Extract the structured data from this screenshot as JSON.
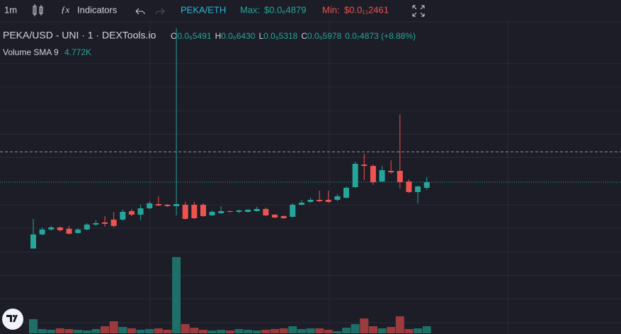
{
  "toolbar": {
    "interval": "1m",
    "indicators": "Indicators",
    "pair": "PEKA/ETH",
    "max_label": "Max:",
    "max_value": "$0.0₆4879",
    "min_label": "Min:",
    "min_value": "$0.0₁₁2461"
  },
  "legend": {
    "symbol": "PEKA/USD - UNI · 1 · DEXTools.io",
    "ohlc": [
      {
        "label": "O",
        "value": "0.0₆5491"
      },
      {
        "label": "H",
        "value": "0.0₆6430"
      },
      {
        "label": "L",
        "value": "0.0₆5318"
      },
      {
        "label": "C",
        "value": "0.0₆5978"
      }
    ],
    "change": "0.0₇4873 (+8.88%)",
    "volume_label": "Volume SMA 9",
    "volume_value": "4.772K"
  },
  "chart_data": {
    "type": "candlestick",
    "up_color": "#26a69a",
    "down_color": "#ef5350",
    "volume_up_color": "#1d6f68",
    "volume_down_color": "#9c3b3d",
    "ylim": [
      6.1e-09,
      1.9886e-06
    ],
    "vlim": [
      0,
      44000
    ],
    "open": [
      2.44e-08,
      1.464e-07,
      1.891e-07,
      2.074e-07,
      1.952e-07,
      1.586e-07,
      1.891e-07,
      2.318e-07,
      2.501e-07,
      2.745e-07,
      2.745e-07,
      3.477e-07,
      3.172e-07,
      3.721e-07,
      4.087e-07,
      4.026e-07,
      3.904e-07,
      4.026e-07,
      4.026e-07,
      4.026e-07,
      3.111e-07,
      3.294e-07,
      3.477e-07,
      3.416e-07,
      3.416e-07,
      3.477e-07,
      3.66e-07,
      3.172e-07,
      3.05e-07,
      2.989e-07,
      4.026e-07,
      4.27e-07,
      4.453e-07,
      4.453e-07,
      4.453e-07,
      4.636e-07,
      5.551e-07,
      7.503e-07,
      7.381e-07,
      6.039e-07,
      6.954e-07,
      6.954e-07,
      6.039e-07,
      5.124e-07,
      5.491e-07
    ],
    "high": [
      2.806e-07,
      2.074e-07,
      2.196e-07,
      2.135e-07,
      2.196e-07,
      2.013e-07,
      2.44e-07,
      2.684e-07,
      3.05e-07,
      3.416e-07,
      3.599e-07,
      3.66e-07,
      4.026e-07,
      4.331e-07,
      4.758e-07,
      4.087e-07,
      1.9276e-06,
      4.27e-07,
      4.27e-07,
      4.148e-07,
      3.538e-07,
      3.904e-07,
      3.538e-07,
      3.599e-07,
      3.66e-07,
      3.843e-07,
      3.782e-07,
      3.233e-07,
      3.111e-07,
      4.148e-07,
      4.453e-07,
      4.636e-07,
      5.246e-07,
      5.246e-07,
      4.941e-07,
      5.612e-07,
      7.747e-07,
      8.418e-07,
      7.503e-07,
      7.381e-07,
      7.869e-07,
      1.1834e-06,
      6.222e-07,
      5.673e-07,
      6.43e-07
    ],
    "low": [
      2.44e-08,
      1.403e-07,
      1.769e-07,
      1.708e-07,
      1.464e-07,
      1.525e-07,
      1.83e-07,
      2.196e-07,
      2.135e-07,
      2.074e-07,
      2.623e-07,
      3.05e-07,
      2.684e-07,
      3.66e-07,
      3.904e-07,
      3.843e-07,
      3.111e-07,
      2.745e-07,
      2.806e-07,
      2.989e-07,
      3.05e-07,
      3.233e-07,
      3.355e-07,
      3.294e-07,
      3.355e-07,
      3.416e-07,
      3.05e-07,
      2.867e-07,
      2.806e-07,
      2.928e-07,
      3.965e-07,
      4.209e-07,
      4.27e-07,
      4.209e-07,
      4.331e-07,
      4.575e-07,
      5.49e-07,
      6.161e-07,
      5.734e-07,
      5.978e-07,
      6.71e-07,
      5.429e-07,
      5.063e-07,
      4.148e-07,
      5.318e-07
    ],
    "close": [
      1.464e-07,
      1.891e-07,
      2.074e-07,
      1.83e-07,
      1.525e-07,
      1.891e-07,
      2.318e-07,
      2.44e-07,
      2.379e-07,
      2.196e-07,
      3.416e-07,
      3.172e-07,
      3.721e-07,
      4.148e-07,
      3.965e-07,
      3.904e-07,
      4.087e-07,
      2.806e-07,
      2.867e-07,
      3.05e-07,
      3.416e-07,
      3.477e-07,
      3.416e-07,
      3.538e-07,
      3.599e-07,
      3.66e-07,
      3.111e-07,
      2.928e-07,
      2.867e-07,
      4.026e-07,
      4.209e-07,
      4.453e-07,
      4.331e-07,
      4.27e-07,
      4.758e-07,
      5.49e-07,
      7.564e-07,
      7.381e-07,
      5.978e-07,
      7.015e-07,
      6.832e-07,
      5.978e-07,
      5.124e-07,
      5.612e-07,
      5.978e-07
    ],
    "volume": [
      8000,
      2400,
      2000,
      2800,
      2400,
      2000,
      1600,
      2400,
      4000,
      6800,
      3600,
      2800,
      2000,
      2400,
      2800,
      2000,
      43200,
      5200,
      3200,
      2000,
      1600,
      2000,
      1600,
      2400,
      2000,
      1600,
      2000,
      2400,
      2800,
      4000,
      2400,
      2800,
      2800,
      2000,
      1200,
      3200,
      5200,
      8400,
      4000,
      2800,
      3600,
      9600,
      2400,
      2800,
      4000
    ]
  }
}
